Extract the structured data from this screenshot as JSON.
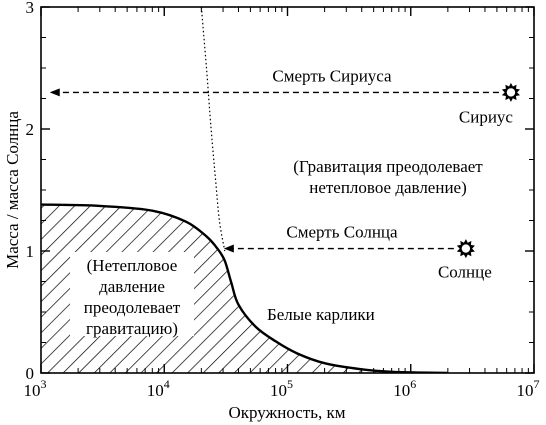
{
  "chart_data": {
    "type": "line",
    "xlabel": "Окружность, км",
    "ylabel": "Масса / масса Солнца",
    "x_scale": "log",
    "xlim": [
      1000,
      10000000
    ],
    "ylim": [
      0,
      3
    ],
    "x_ticks": [
      {
        "base": "10",
        "exp": "3",
        "value": 1000
      },
      {
        "base": "10",
        "exp": "4",
        "value": 10000
      },
      {
        "base": "10",
        "exp": "5",
        "value": 100000
      },
      {
        "base": "10",
        "exp": "6",
        "value": 1000000
      },
      {
        "base": "10",
        "exp": "7",
        "value": 10000000
      }
    ],
    "y_ticks": [
      "0",
      "1",
      "2",
      "3"
    ],
    "grid": false,
    "series": [
      {
        "name": "Белые карлики",
        "style": "solid",
        "x": [
          1000,
          3000,
          8000,
          15000,
          22000,
          27000,
          31000,
          35000,
          40000,
          55000,
          80000,
          120000,
          200000,
          400000,
          700000,
          1200000,
          2000000
        ],
        "y": [
          1.38,
          1.37,
          1.33,
          1.24,
          1.12,
          1.02,
          0.92,
          0.74,
          0.56,
          0.38,
          0.26,
          0.16,
          0.08,
          0.03,
          0.01,
          0.003,
          0.0
        ]
      },
      {
        "style": "dotted",
        "x": [
          20000,
          22000,
          24000,
          26000,
          28000,
          31000
        ],
        "y": [
          3.0,
          2.5,
          2.0,
          1.6,
          1.25,
          1.0
        ]
      }
    ],
    "regions": [
      {
        "fill": "hatched",
        "under_series": 0,
        "label_lines": [
          "(Нетепловое",
          "давление",
          "преодолевает",
          "гравитацию)"
        ]
      }
    ],
    "annotations": [
      {
        "id": "sirius",
        "star_label": "Сириус",
        "arrow_label": "Смерть Сириуса",
        "from": [
          6500000,
          2.3
        ],
        "to": [
          1200,
          2.3
        ]
      },
      {
        "id": "sun",
        "star_label": "Солнце",
        "arrow_label": "Смерть Солнца",
        "from": [
          2800000,
          1.02
        ],
        "to": [
          31000,
          1.02
        ]
      }
    ],
    "region_label": [
      "(Гравитация преодолевает",
      "нетепловое давление)"
    ],
    "curve_label": "Белые карлики"
  },
  "colors": {
    "ink": "#000000",
    "background": "#ffffff"
  },
  "icons": {
    "star": "sun-star-icon"
  }
}
